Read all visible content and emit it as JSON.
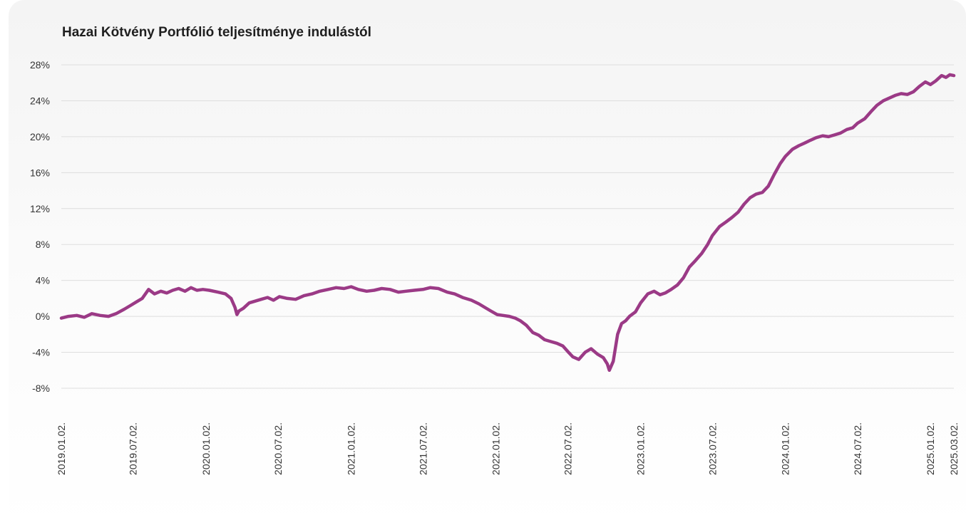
{
  "chart_data": {
    "type": "line",
    "title": "Hazai Kötvény Portfólió teljesítménye indulástól",
    "xlabel": "",
    "ylabel": "",
    "ylim": [
      -8,
      28
    ],
    "y_ticks": [
      "28%",
      "24%",
      "20%",
      "16%",
      "12%",
      "8%",
      "4%",
      "0%",
      "-4%",
      "-8%"
    ],
    "y_tick_values": [
      28,
      24,
      20,
      16,
      12,
      8,
      4,
      0,
      -4,
      -8
    ],
    "x_ticks": [
      "2019.01.02.",
      "2019.07.02.",
      "2020.01.02.",
      "2020.07.02.",
      "2021.01.02.",
      "2021.07.02.",
      "2022.01.02.",
      "2022.07.02.",
      "2023.01.02.",
      "2023.07.02.",
      "2024.01.02.",
      "2024.07.02.",
      "2025.01.02.",
      "2025.03.02."
    ],
    "x_tick_dates": [
      "2019-01-02",
      "2019-07-02",
      "2020-01-02",
      "2020-07-02",
      "2021-01-02",
      "2021-07-02",
      "2022-01-02",
      "2022-07-02",
      "2023-01-02",
      "2023-07-02",
      "2024-01-02",
      "2024-07-02",
      "2025-01-02",
      "2025-03-02"
    ],
    "grid": true,
    "line_color": "#9b3a86",
    "series": [
      {
        "name": "",
        "x": [
          "2019-01-02",
          "2019-01-20",
          "2019-02-10",
          "2019-03-01",
          "2019-03-20",
          "2019-04-10",
          "2019-05-01",
          "2019-05-20",
          "2019-06-10",
          "2019-06-25",
          "2019-07-10",
          "2019-07-25",
          "2019-08-10",
          "2019-08-25",
          "2019-09-10",
          "2019-09-25",
          "2019-10-10",
          "2019-10-25",
          "2019-11-10",
          "2019-11-25",
          "2019-12-10",
          "2019-12-25",
          "2020-01-10",
          "2020-02-01",
          "2020-02-20",
          "2020-03-05",
          "2020-03-15",
          "2020-03-20",
          "2020-03-25",
          "2020-04-05",
          "2020-04-20",
          "2020-05-05",
          "2020-05-20",
          "2020-06-05",
          "2020-06-20",
          "2020-07-05",
          "2020-07-25",
          "2020-08-15",
          "2020-09-05",
          "2020-09-25",
          "2020-10-15",
          "2020-11-05",
          "2020-11-25",
          "2020-12-15",
          "2021-01-02",
          "2021-01-20",
          "2021-02-10",
          "2021-03-01",
          "2021-03-20",
          "2021-04-10",
          "2021-05-01",
          "2021-05-20",
          "2021-06-10",
          "2021-07-02",
          "2021-07-20",
          "2021-08-10",
          "2021-09-01",
          "2021-09-20",
          "2021-10-10",
          "2021-11-01",
          "2021-11-20",
          "2021-12-05",
          "2021-12-20",
          "2022-01-05",
          "2022-01-20",
          "2022-02-05",
          "2022-02-20",
          "2022-03-05",
          "2022-03-20",
          "2022-04-05",
          "2022-04-20",
          "2022-05-05",
          "2022-05-20",
          "2022-06-05",
          "2022-06-20",
          "2022-07-02",
          "2022-07-15",
          "2022-07-30",
          "2022-08-15",
          "2022-08-30",
          "2022-09-15",
          "2022-09-30",
          "2022-10-10",
          "2022-10-15",
          "2022-10-25",
          "2022-11-05",
          "2022-11-15",
          "2022-11-25",
          "2022-12-05",
          "2022-12-20",
          "2023-01-02",
          "2023-01-20",
          "2023-02-05",
          "2023-02-20",
          "2023-03-05",
          "2023-03-20",
          "2023-04-05",
          "2023-04-20",
          "2023-05-05",
          "2023-05-20",
          "2023-06-05",
          "2023-06-20",
          "2023-07-02",
          "2023-07-20",
          "2023-08-05",
          "2023-08-20",
          "2023-09-05",
          "2023-09-20",
          "2023-10-05",
          "2023-10-20",
          "2023-11-05",
          "2023-11-20",
          "2023-12-05",
          "2023-12-20",
          "2024-01-02",
          "2024-01-20",
          "2024-02-05",
          "2024-02-20",
          "2024-03-05",
          "2024-03-20",
          "2024-04-05",
          "2024-04-20",
          "2024-05-05",
          "2024-05-20",
          "2024-06-05",
          "2024-06-20",
          "2024-07-02",
          "2024-07-20",
          "2024-08-05",
          "2024-08-20",
          "2024-09-05",
          "2024-09-20",
          "2024-10-05",
          "2024-10-20",
          "2024-11-05",
          "2024-11-20",
          "2024-12-05",
          "2024-12-20",
          "2025-01-02",
          "2025-01-15",
          "2025-01-30",
          "2025-02-10",
          "2025-02-20",
          "2025-03-02"
        ],
        "values": [
          -0.2,
          0.0,
          0.1,
          -0.1,
          0.3,
          0.1,
          0.0,
          0.3,
          0.8,
          1.2,
          1.6,
          2.0,
          3.0,
          2.5,
          2.8,
          2.6,
          2.9,
          3.1,
          2.8,
          3.2,
          2.9,
          3.0,
          2.9,
          2.7,
          2.5,
          2.0,
          1.0,
          0.2,
          0.6,
          0.9,
          1.5,
          1.7,
          1.9,
          2.1,
          1.8,
          2.2,
          2.0,
          1.9,
          2.3,
          2.5,
          2.8,
          3.0,
          3.2,
          3.1,
          3.3,
          3.0,
          2.8,
          2.9,
          3.1,
          3.0,
          2.7,
          2.8,
          2.9,
          3.0,
          3.2,
          3.1,
          2.7,
          2.5,
          2.1,
          1.8,
          1.4,
          1.0,
          0.6,
          0.2,
          0.1,
          0.0,
          -0.2,
          -0.5,
          -1.0,
          -1.8,
          -2.1,
          -2.6,
          -2.8,
          -3.0,
          -3.3,
          -3.9,
          -4.5,
          -4.8,
          -4.0,
          -3.6,
          -4.2,
          -4.6,
          -5.3,
          -6.0,
          -5.0,
          -2.0,
          -0.8,
          -0.5,
          0.0,
          0.5,
          1.5,
          2.5,
          2.8,
          2.4,
          2.6,
          3.0,
          3.5,
          4.3,
          5.5,
          6.2,
          7.0,
          8.0,
          9.0,
          10.0,
          10.5,
          11.0,
          11.6,
          12.5,
          13.2,
          13.6,
          13.8,
          14.5,
          15.8,
          17.0,
          17.8,
          18.6,
          19.0,
          19.3,
          19.6,
          19.9,
          20.1,
          20.0,
          20.2,
          20.4,
          20.8,
          21.0,
          21.5,
          22.0,
          22.8,
          23.5,
          24.0,
          24.3,
          24.6,
          24.8,
          24.7,
          25.0,
          25.6,
          26.1,
          25.8,
          26.2,
          26.8,
          26.6,
          26.9,
          26.8
        ]
      }
    ]
  }
}
